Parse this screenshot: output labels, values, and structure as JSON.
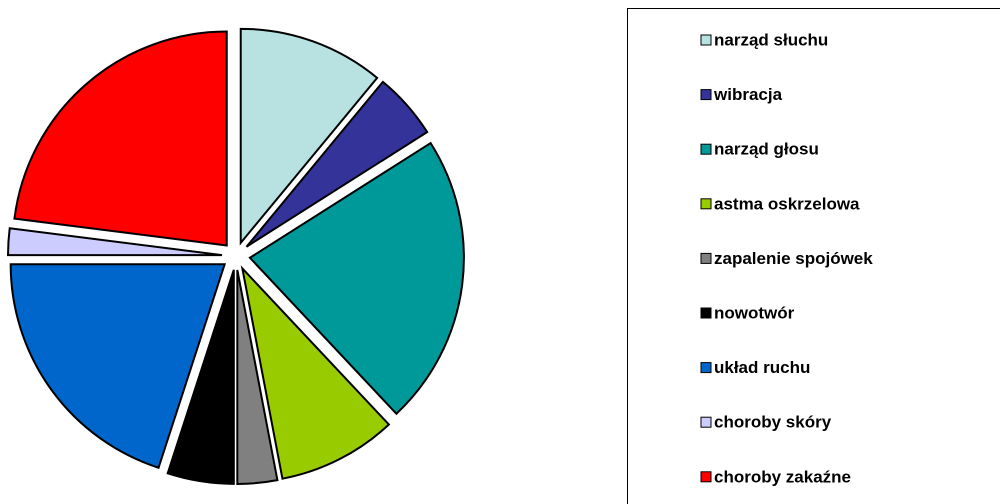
{
  "chart_data": {
    "type": "pie",
    "categories": [
      "narząd słuchu",
      "wibracja",
      "narząd głosu",
      "astma oskrzelowa",
      "zapalenie spojówek",
      "nowotwór",
      "układ ruchu",
      "choroby skóry",
      "choroby zakaźne"
    ],
    "values": [
      11,
      5,
      22,
      9,
      3,
      5,
      20,
      2,
      23
    ],
    "colors": [
      "#b8e2e2",
      "#333399",
      "#009999",
      "#99cc00",
      "#808080",
      "#000000",
      "#0066cc",
      "#ccccff",
      "#ff0000"
    ],
    "legend": "right"
  }
}
